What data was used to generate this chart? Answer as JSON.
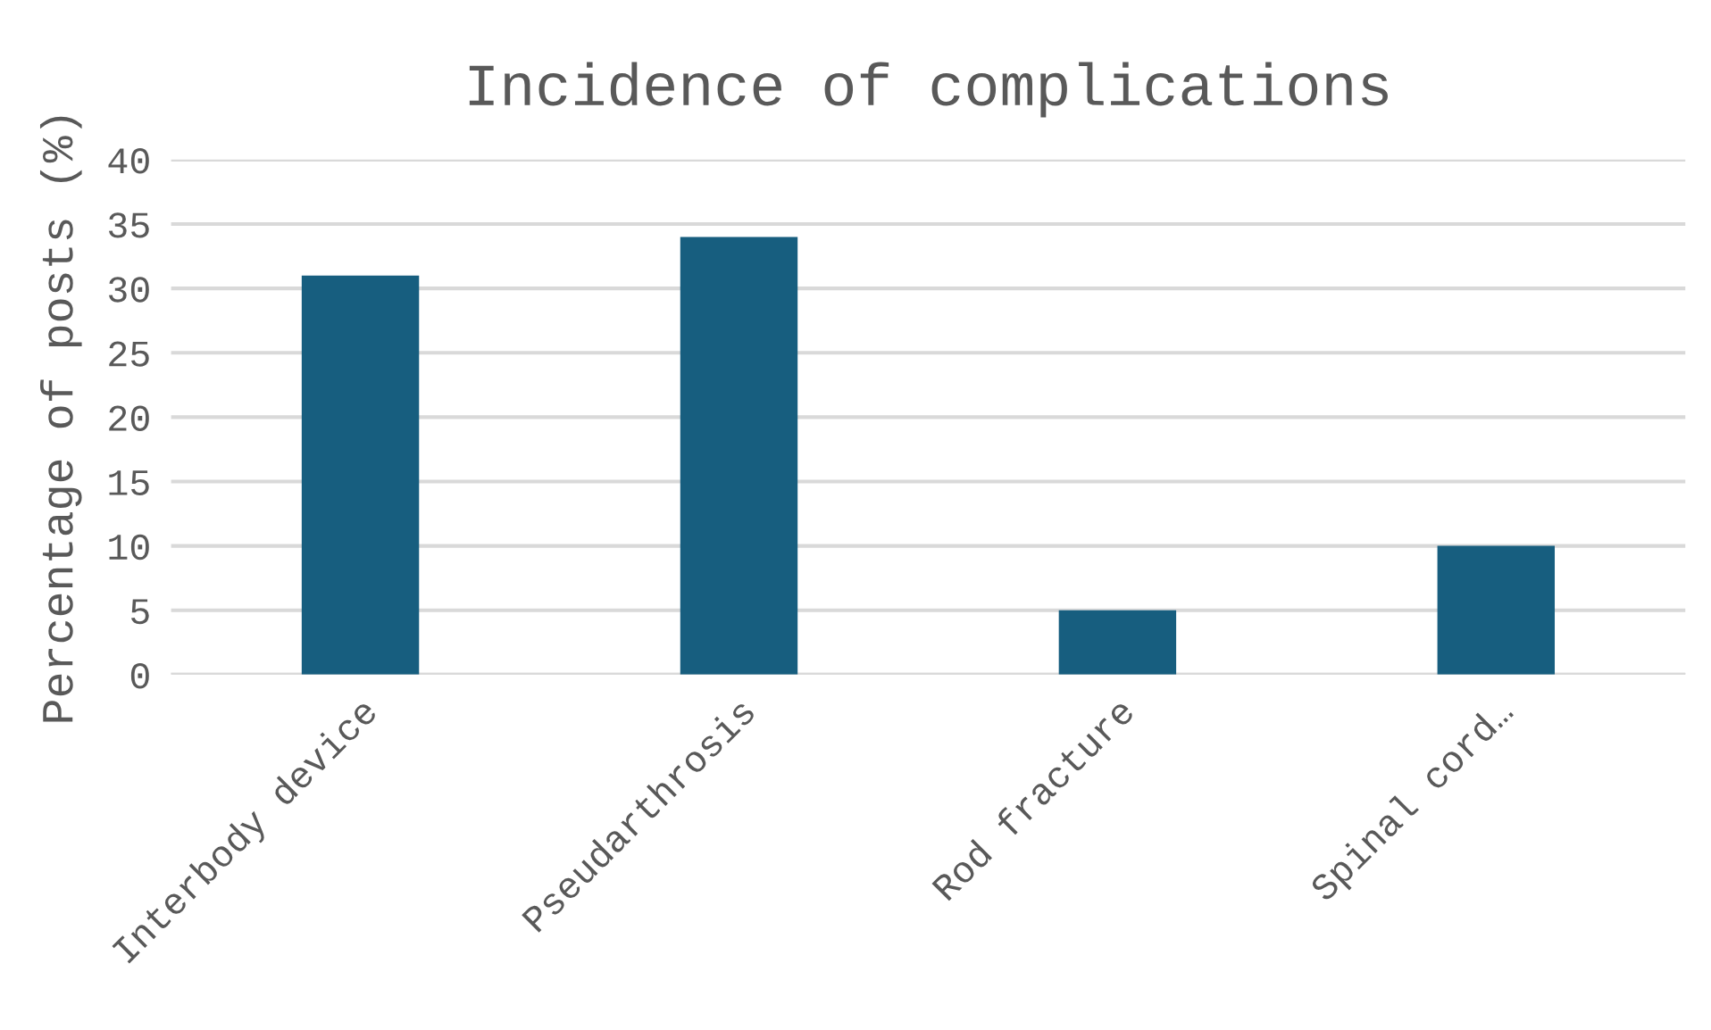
{
  "chart_data": {
    "type": "bar",
    "title": "Incidence of complications",
    "ylabel": "Percentage of posts (%)",
    "categories": [
      "Interbody device",
      "Pseudarthrosis",
      "Rod fracture",
      "Spinal cord…"
    ],
    "values": [
      31,
      34,
      5,
      10
    ],
    "color": "#175e7f",
    "ylim": [
      0,
      40
    ],
    "yticks": [
      0,
      5,
      10,
      15,
      20,
      25,
      30,
      35,
      40
    ],
    "grid": "y",
    "legend": false
  }
}
